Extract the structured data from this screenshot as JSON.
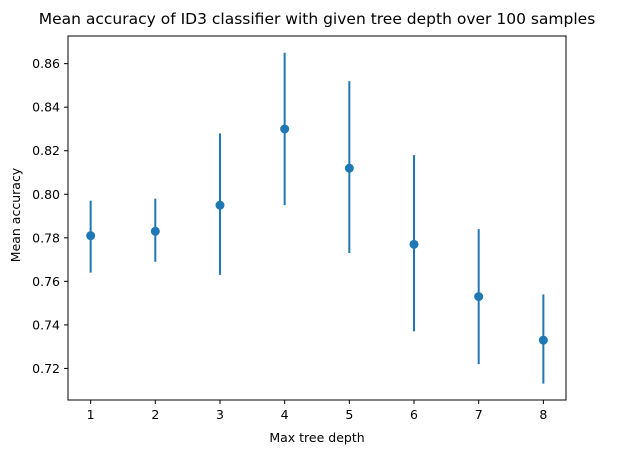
{
  "chart_data": {
    "type": "scatter",
    "subtype": "errorbar",
    "title": "Mean accuracy of ID3 classifier with given tree depth over 100 samples",
    "xlabel": "Max tree depth",
    "ylabel": "Mean accuracy",
    "x": [
      1,
      2,
      3,
      4,
      5,
      6,
      7,
      8
    ],
    "y": [
      0.781,
      0.783,
      0.795,
      0.83,
      0.812,
      0.777,
      0.753,
      0.733
    ],
    "y_lower": [
      0.764,
      0.769,
      0.763,
      0.795,
      0.773,
      0.737,
      0.722,
      0.713
    ],
    "y_upper": [
      0.797,
      0.798,
      0.828,
      0.865,
      0.852,
      0.818,
      0.784,
      0.754
    ],
    "xticks": [
      "1",
      "2",
      "3",
      "4",
      "5",
      "6",
      "7",
      "8"
    ],
    "yticks": [
      "0.72",
      "0.74",
      "0.76",
      "0.78",
      "0.80",
      "0.82",
      "0.84",
      "0.86"
    ],
    "xlim": [
      0.65,
      8.35
    ],
    "ylim": [
      0.7055,
      0.8727
    ],
    "grid": false,
    "legend": "none",
    "colors": {
      "series": "#1f77b4",
      "axis": "#000000"
    }
  }
}
